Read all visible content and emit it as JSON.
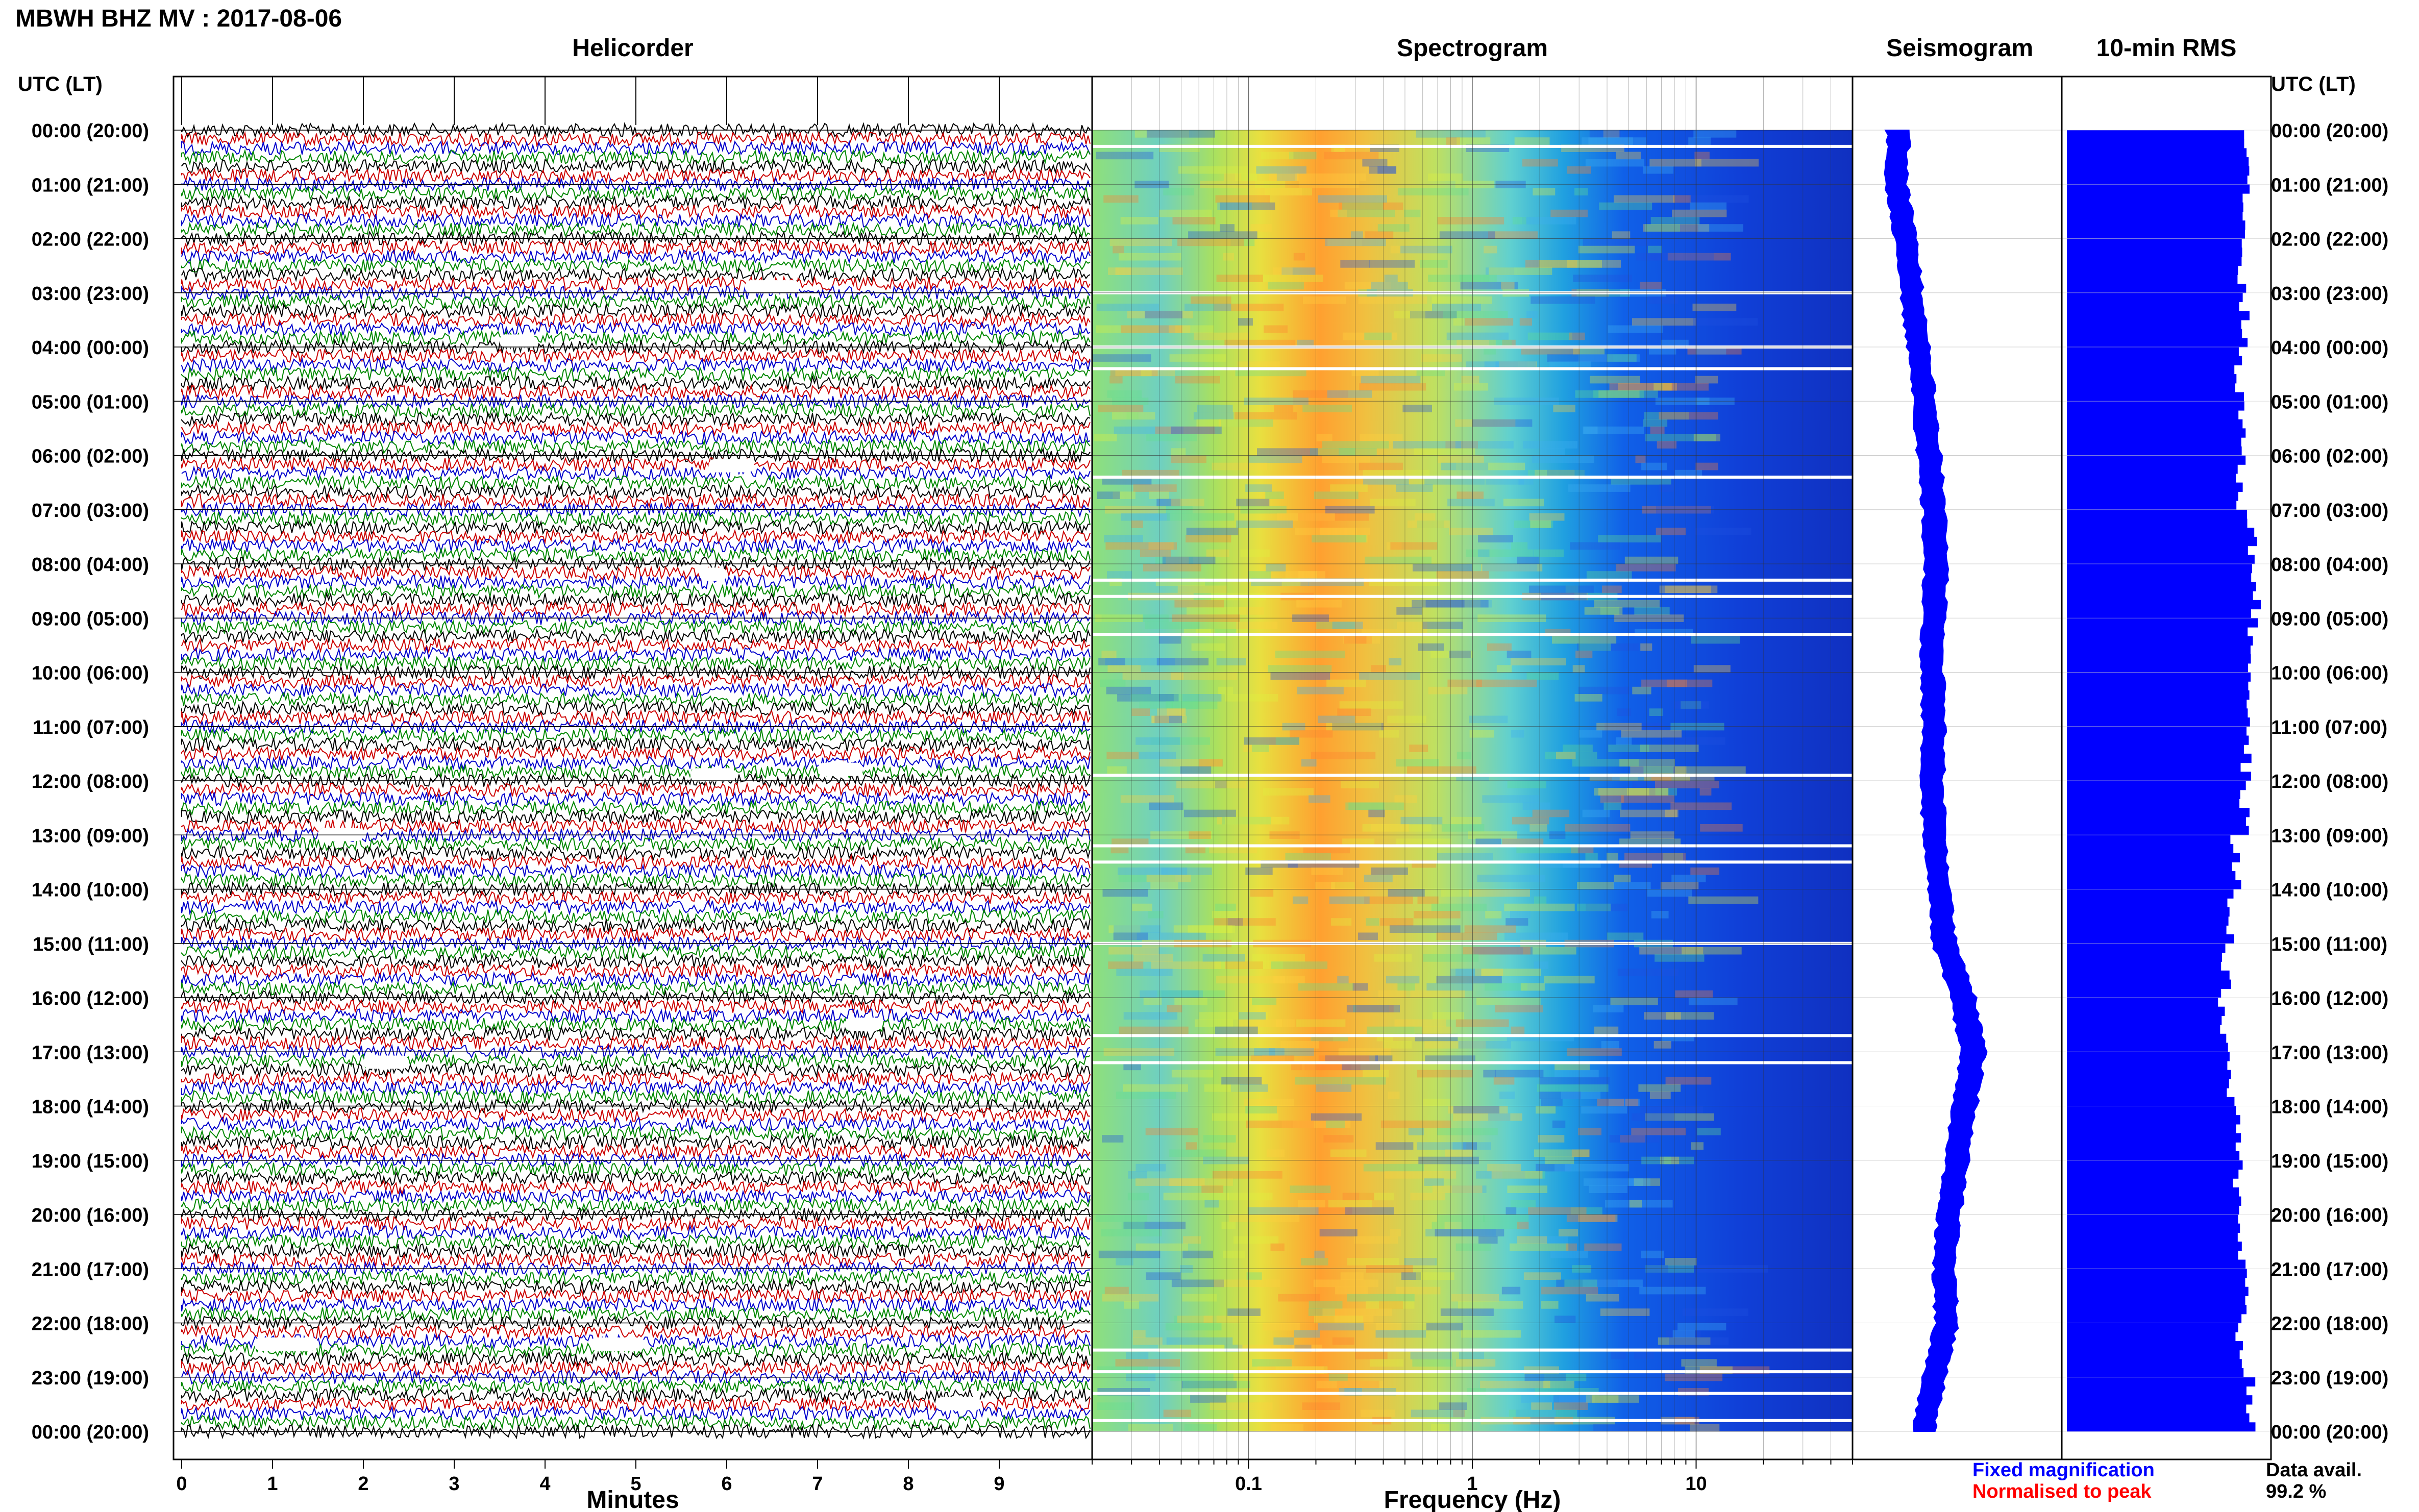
{
  "title": "MBWH BHZ MV : 2017-08-06",
  "panel_titles": {
    "helicorder": "Helicorder",
    "spectrogram": "Spectrogram",
    "seismogram": "Seismogram",
    "rms": "10-min RMS"
  },
  "axis_header_left": "UTC (LT)",
  "axis_header_right": "UTC (LT)",
  "time_labels": [
    "00:00 (20:00)",
    "01:00 (21:00)",
    "02:00 (22:00)",
    "03:00 (23:00)",
    "04:00 (00:00)",
    "05:00 (01:00)",
    "06:00 (02:00)",
    "07:00 (03:00)",
    "08:00 (04:00)",
    "09:00 (05:00)",
    "10:00 (06:00)",
    "11:00 (07:00)",
    "12:00 (08:00)",
    "13:00 (09:00)",
    "14:00 (10:00)",
    "15:00 (11:00)",
    "16:00 (12:00)",
    "17:00 (13:00)",
    "18:00 (14:00)",
    "19:00 (15:00)",
    "20:00 (16:00)",
    "21:00 (17:00)",
    "22:00 (18:00)",
    "23:00 (19:00)",
    "00:00 (20:00)"
  ],
  "legend": {
    "fixed": "Fixed magnification",
    "normalised": "Normalised to peak",
    "fixed_color": "#0000ff",
    "normalised_color": "#ff0000"
  },
  "data_avail": {
    "label": "Data avail.",
    "value": "99.2 %"
  },
  "colors": {
    "trace_cycle": [
      "#000000",
      "#cc0000",
      "#0000cc",
      "#008800"
    ],
    "seismogram": "#0000ff",
    "rms": "#0000ff",
    "gap": "#ffffff"
  },
  "chart_data": [
    {
      "type": "line",
      "name": "helicorder",
      "title": "Helicorder",
      "xlabel": "Minutes",
      "xlim": [
        0,
        10
      ],
      "x_ticks": [
        0,
        1,
        2,
        3,
        4,
        5,
        6,
        7,
        8,
        9
      ],
      "traces_per_hour": 6,
      "hours": 24,
      "gaps": [
        {
          "hour": 2.9,
          "minute_start": 6.2,
          "minute_end": 6.8
        },
        {
          "hour": 3.9,
          "minute_start": 3.5,
          "minute_end": 3.9
        },
        {
          "hour": 6.2,
          "minute_start": 5.8,
          "minute_end": 6.3
        },
        {
          "hour": 8.2,
          "minute_start": 5.7,
          "minute_end": 6.0
        },
        {
          "hour": 11.9,
          "minute_start": 5.6,
          "minute_end": 6.1
        },
        {
          "hour": 11.8,
          "minute_start": 7.0,
          "minute_end": 7.5
        },
        {
          "hour": 13.0,
          "minute_start": 1.5,
          "minute_end": 2.0
        },
        {
          "hour": 16.5,
          "minute_start": 7.3,
          "minute_end": 7.7
        },
        {
          "hour": 17.2,
          "minute_start": 2.0,
          "minute_end": 2.5
        },
        {
          "hour": 22.4,
          "minute_start": 0.8,
          "minute_end": 1.5
        },
        {
          "hour": 22.4,
          "minute_start": 4.5,
          "minute_end": 5.1
        },
        {
          "hour": 23.5,
          "minute_start": 8.3,
          "minute_end": 8.8
        }
      ]
    },
    {
      "type": "heatmap",
      "name": "spectrogram",
      "title": "Spectrogram",
      "xlabel": "Frequency (Hz)",
      "xscale": "log",
      "xlim": [
        0.02,
        50
      ],
      "x_ticks": [
        0.1,
        1,
        10
      ],
      "x_tick_labels": [
        "0.1",
        "1",
        "10"
      ],
      "colormap": "jet",
      "peak_band_hz": [
        0.2,
        0.7
      ],
      "gap_hours": [
        0.3,
        3.0,
        4.0,
        4.4,
        6.4,
        8.3,
        8.6,
        9.3,
        11.9,
        13.2,
        13.5,
        15.0,
        16.7,
        17.2,
        22.5,
        22.9,
        23.3,
        23.8
      ]
    },
    {
      "type": "line",
      "name": "seismogram",
      "title": "Seismogram",
      "hours": [
        0,
        1,
        2,
        3,
        4,
        5,
        6,
        7,
        8,
        9,
        10,
        11,
        12,
        13,
        14,
        15,
        16,
        17,
        18,
        19,
        20,
        21,
        22,
        23,
        24
      ],
      "offset": [
        0.05,
        0.03,
        0.12,
        0.18,
        0.25,
        0.3,
        0.35,
        0.4,
        0.42,
        0.4,
        0.38,
        0.4,
        0.38,
        0.4,
        0.45,
        0.5,
        0.68,
        0.78,
        0.7,
        0.62,
        0.55,
        0.5,
        0.52,
        0.4,
        0.3
      ],
      "amplitude": [
        0.18,
        0.16,
        0.17,
        0.17,
        0.18,
        0.18,
        0.18,
        0.18,
        0.19,
        0.18,
        0.18,
        0.18,
        0.18,
        0.18,
        0.17,
        0.18,
        0.2,
        0.2,
        0.19,
        0.19,
        0.18,
        0.17,
        0.18,
        0.18,
        0.17
      ]
    },
    {
      "type": "bar",
      "name": "rms",
      "title": "10-min RMS",
      "orientation": "horizontal",
      "hours": [
        0,
        1,
        2,
        3,
        4,
        5,
        6,
        7,
        8,
        9,
        10,
        11,
        12,
        13,
        14,
        15,
        16,
        17,
        18,
        19,
        20,
        21,
        22,
        23
      ],
      "values": [
        0.92,
        0.9,
        0.88,
        0.89,
        0.87,
        0.88,
        0.87,
        0.93,
        0.95,
        0.93,
        0.92,
        0.9,
        0.89,
        0.85,
        0.82,
        0.8,
        0.78,
        0.82,
        0.85,
        0.86,
        0.88,
        0.9,
        0.87,
        0.93
      ],
      "xlim": [
        0,
        1
      ]
    }
  ]
}
